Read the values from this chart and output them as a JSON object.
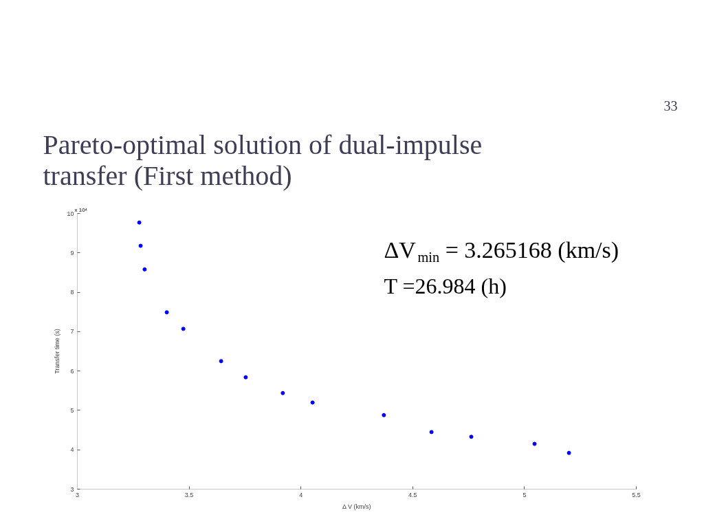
{
  "chart_data": {
    "type": "scatter",
    "title": "Pareto-optimal solution of dual-impulse\ntransfer (First method)",
    "xlabel": "Δ V (km/s)",
    "ylabel": "Transfer time (s)",
    "annotations": [
      "33",
      "x 10⁴",
      "ΔV$_{min}$ = 3.265168 (km/s)",
      "T =26.984  (h)"
    ],
    "x": [
      3.277,
      3.283,
      3.301,
      3.4,
      3.474,
      3.643,
      3.753,
      3.919,
      4.052,
      4.371,
      4.584,
      4.762,
      5.045,
      5.199
    ],
    "series": [
      {
        "color": "#0000ff",
        "values": [
          9.77,
          9.18,
          8.58,
          7.49,
          7.07,
          6.25,
          5.84,
          5.44,
          5.2,
          4.88,
          4.45,
          4.33,
          4.15,
          3.92
        ]
      }
    ],
    "xlim": [
      3,
      5.5
    ],
    "ylim": [
      3,
      10
    ],
    "xticks": [
      3,
      3.5,
      4,
      4.5,
      5,
      5.5
    ],
    "yticks": [
      3,
      4,
      5,
      6,
      7,
      8,
      9,
      10
    ],
    "grid": false,
    "marker": "circle"
  }
}
